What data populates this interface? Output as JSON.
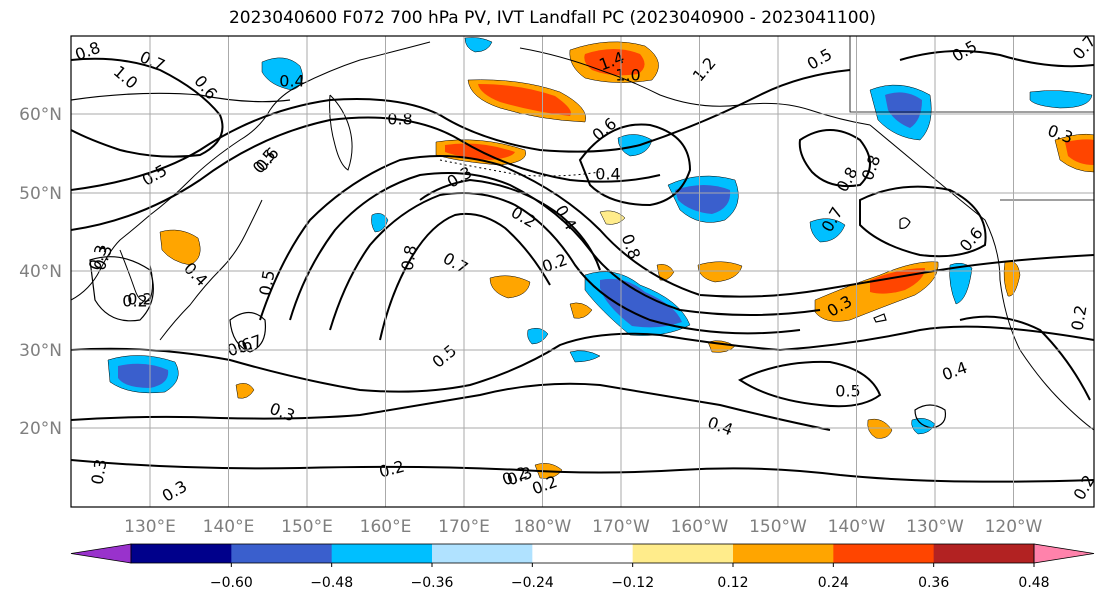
{
  "title": "2023040600 F072 700 hPa PV, IVT Landfall PC (2023040900 - 2023041100)",
  "lat_labels": [
    "60°N",
    "50°N",
    "40°N",
    "30°N",
    "20°N"
  ],
  "lon_labels": [
    "130°E",
    "140°E",
    "150°E",
    "160°E",
    "170°E",
    "180°W",
    "170°W",
    "160°W",
    "150°W",
    "140°W",
    "130°W",
    "120°W"
  ],
  "colorbar": {
    "colors": [
      "#9932cc",
      "#00008b",
      "#3a5fcd",
      "#00bfff",
      "#b0e2ff",
      "#ffffff",
      "#ffec8b",
      "#ffa500",
      "#ff4500",
      "#b22222",
      "#ff82ab"
    ],
    "ticks": [
      "−0.60",
      "−0.48",
      "−0.36",
      "−0.24",
      "−0.12",
      "0.12",
      "0.24",
      "0.36",
      "0.48",
      "0.60"
    ]
  },
  "contour_labels": [
    "0.8",
    "0.7",
    "1.0",
    "0.6",
    "0.4",
    "0.5",
    "0.3",
    "0.2",
    "0.3",
    "0.4",
    "0.5",
    "0.2",
    "0.7",
    "0.6",
    "0.3",
    "0.2",
    "0.3",
    "0.3",
    "0.2",
    "0.2",
    "0.4",
    "0.5",
    "0.2",
    "0.8",
    "0.6",
    "0.3",
    "0.4",
    "0.2",
    "0.8",
    "0.7",
    "0.5",
    "0.3",
    "0.5",
    "0.4",
    "0.4",
    "0.3",
    "0.2",
    "0.6",
    "0.3",
    "0.5",
    "0.8",
    "1.4",
    "1.0",
    "1.2",
    "0.6",
    "0.5",
    "0.7",
    "0.8",
    "0.8",
    "0.7",
    "0.2"
  ]
}
